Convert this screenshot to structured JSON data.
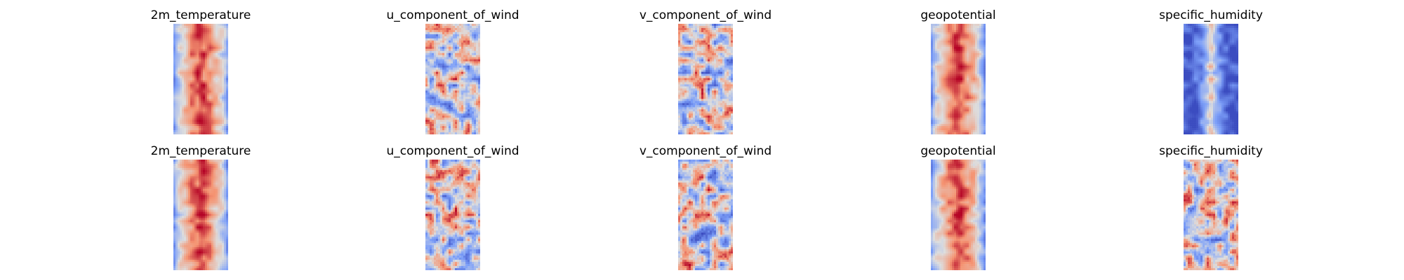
{
  "chart_data": [
    {
      "type": "heatmap",
      "row": 1,
      "title": "2m_temperature",
      "colormap": "coolwarm",
      "pattern": "banded",
      "axes": "off"
    },
    {
      "type": "heatmap",
      "row": 1,
      "title": "u_component_of_wind",
      "colormap": "coolwarm",
      "pattern": "noisy",
      "axes": "off"
    },
    {
      "type": "heatmap",
      "row": 1,
      "title": "v_component_of_wind",
      "colormap": "coolwarm",
      "pattern": "noisy",
      "axes": "off"
    },
    {
      "type": "heatmap",
      "row": 1,
      "title": "geopotential",
      "colormap": "coolwarm",
      "pattern": "banded",
      "axes": "off"
    },
    {
      "type": "heatmap",
      "row": 1,
      "title": "specific_humidity",
      "colormap": "coolwarm",
      "pattern": "peaked",
      "axes": "off"
    },
    {
      "type": "heatmap",
      "row": 2,
      "title": "2m_temperature",
      "colormap": "coolwarm",
      "pattern": "banded",
      "axes": "off"
    },
    {
      "type": "heatmap",
      "row": 2,
      "title": "u_component_of_wind",
      "colormap": "coolwarm",
      "pattern": "noisy",
      "axes": "off"
    },
    {
      "type": "heatmap",
      "row": 2,
      "title": "v_component_of_wind",
      "colormap": "coolwarm",
      "pattern": "noisy",
      "axes": "off"
    },
    {
      "type": "heatmap",
      "row": 2,
      "title": "geopotential",
      "colormap": "coolwarm",
      "pattern": "banded",
      "axes": "off"
    },
    {
      "type": "heatmap",
      "row": 2,
      "title": "specific_humidity",
      "colormap": "coolwarm",
      "pattern": "noisy",
      "axes": "off"
    }
  ]
}
